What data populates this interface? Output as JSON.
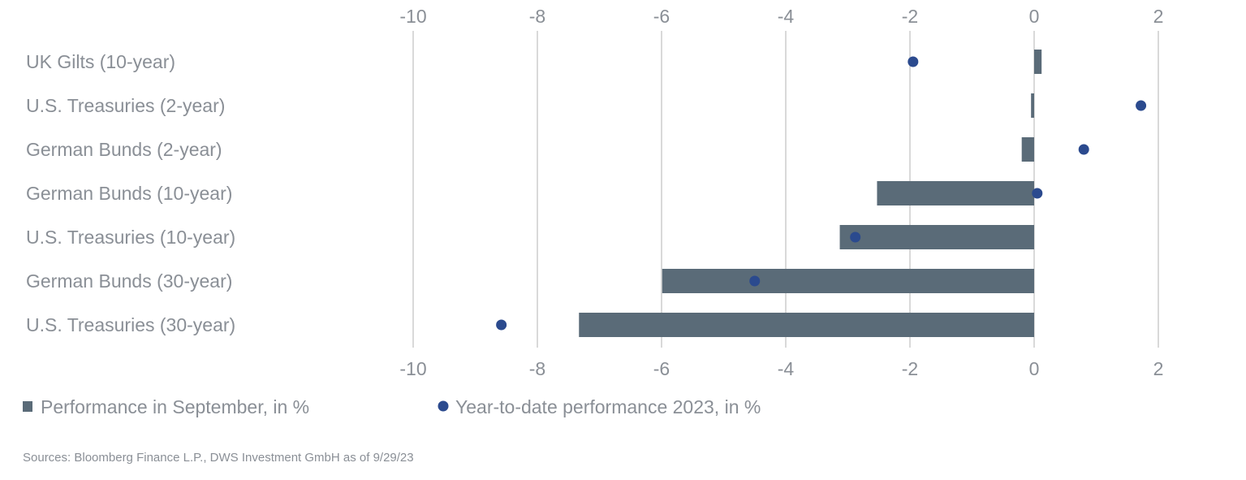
{
  "chart_data": {
    "type": "bar",
    "orientation": "horizontal",
    "categories": [
      "UK Gilts (10-year)",
      "U.S. Treasuries (2-year)",
      "German Bunds (2-year)",
      "German Bunds (10-year)",
      "U.S. Treasuries (10-year)",
      "German Bunds (30-year)",
      "U.S. Treasuries (30-year)"
    ],
    "series": [
      {
        "name": "Performance in September, in %",
        "mark": "bar",
        "color": "#5a6b78",
        "values": [
          0.12,
          -0.05,
          -0.2,
          -2.53,
          -3.13,
          -5.99,
          -7.33
        ]
      },
      {
        "name": "Year-to-date performance 2023, in %",
        "mark": "dot",
        "color": "#2b4a8e",
        "values": [
          -1.95,
          1.72,
          0.8,
          0.05,
          -2.88,
          -4.5,
          -8.58
        ]
      }
    ],
    "xlim": [
      -10,
      2
    ],
    "xticks": [
      -10,
      -8,
      -6,
      -4,
      -2,
      0,
      2
    ],
    "xtick_labels": [
      "-10",
      "-8",
      "-6",
      "-4",
      "-2",
      "0",
      "2"
    ],
    "grid": true,
    "axis_labels_top_and_bottom": true,
    "legend_position": "bottom-left",
    "title": "",
    "xlabel": "",
    "ylabel": "",
    "source": "Sources: Bloomberg Finance L.P., DWS Investment GmbH as of 9/29/23"
  }
}
